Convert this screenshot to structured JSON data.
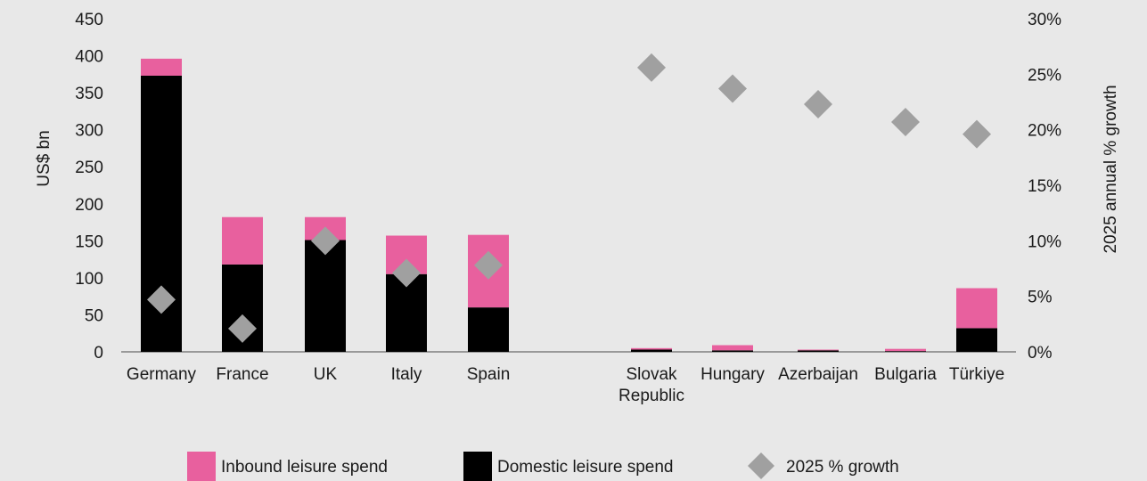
{
  "chart_data": {
    "type": "bar",
    "stacked": true,
    "categories": [
      "Germany",
      "France",
      "UK",
      "Italy",
      "Spain",
      "Slovak Republic",
      "Hungary",
      "Azerbaijan",
      "Bulgaria",
      "Türkiye"
    ],
    "category_lines": [
      [
        "Germany"
      ],
      [
        "France"
      ],
      [
        "UK"
      ],
      [
        "Italy"
      ],
      [
        "Spain"
      ],
      [
        "Slovak",
        "Republic"
      ],
      [
        "Hungary"
      ],
      [
        "Azerbaijan"
      ],
      [
        "Bulgaria"
      ],
      [
        "Türkiye"
      ]
    ],
    "series": [
      {
        "name": "Domestic leisure spend",
        "kind": "bar",
        "axis": "left",
        "color": "#000000",
        "values": [
          373,
          118,
          151,
          105,
          60,
          3,
          2,
          2,
          1,
          32
        ]
      },
      {
        "name": "Inbound leisure spend",
        "kind": "bar",
        "axis": "left",
        "color": "#e8609e",
        "values": [
          23,
          64,
          31,
          52,
          98,
          2,
          7,
          1,
          3,
          54
        ]
      },
      {
        "name": "2025 % growth",
        "kind": "marker",
        "marker": "diamond",
        "axis": "right",
        "color": "#a0a0a0",
        "values": [
          4.7,
          2.1,
          10.0,
          7.1,
          7.8,
          25.6,
          23.7,
          22.3,
          20.7,
          19.6
        ]
      }
    ],
    "ylabel": "US$ bn",
    "ylim": [
      0,
      450
    ],
    "yticks": [
      "0",
      "50",
      "100",
      "150",
      "200",
      "250",
      "300",
      "350",
      "400",
      "450"
    ],
    "y2label": "2025 annual % growth",
    "y2lim": [
      0,
      30
    ],
    "y2ticks": [
      "0%",
      "5%",
      "10%",
      "15%",
      "20%",
      "25%",
      "30%"
    ],
    "legend": [
      {
        "label": "Inbound leisure spend",
        "color": "#e8609e",
        "shape": "square"
      },
      {
        "label": "Domestic leisure spend",
        "color": "#000000",
        "shape": "square"
      },
      {
        "label": "2025 % growth",
        "color": "#a0a0a0",
        "shape": "diamond"
      }
    ],
    "legend_position": "bottom",
    "grid": false,
    "background": "#e8e8e8"
  }
}
